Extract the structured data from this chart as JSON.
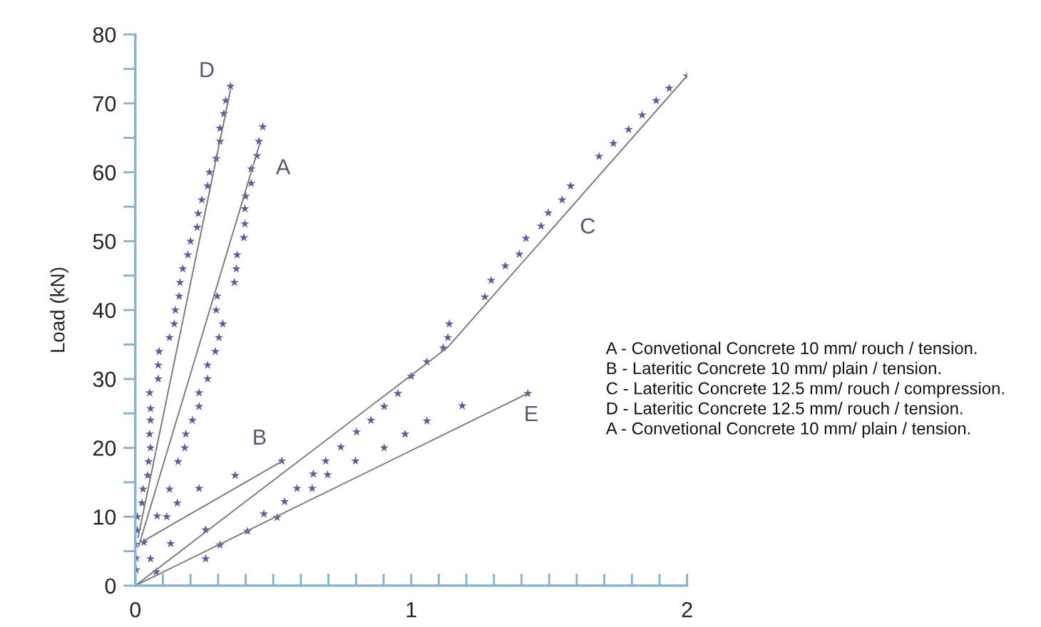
{
  "chart_data": {
    "type": "scatter",
    "ylabel": "Load (kN)",
    "xlim": [
      0,
      2
    ],
    "ylim": [
      0,
      80
    ],
    "xticks": [
      0,
      {
        "value": 0.1,
        "label": null
      },
      {
        "value": 0.2,
        "label": null
      },
      {
        "value": 0.3,
        "label": null
      },
      {
        "value": 0.4,
        "label": null
      },
      {
        "value": 0.5,
        "label": null
      },
      {
        "value": 0.6,
        "label": null
      },
      {
        "value": 0.7,
        "label": null
      },
      {
        "value": 0.8,
        "label": null
      },
      {
        "value": 0.9,
        "label": null
      },
      1,
      {
        "value": 1.1,
        "label": null
      },
      {
        "value": 1.2,
        "label": null
      },
      {
        "value": 1.3,
        "label": null
      },
      {
        "value": 1.4,
        "label": null
      },
      {
        "value": 1.5,
        "label": null
      },
      {
        "value": 1.6,
        "label": null
      },
      {
        "value": 1.7,
        "label": null
      },
      {
        "value": 1.8,
        "label": null
      },
      {
        "value": 1.9,
        "label": null
      },
      2
    ],
    "yticks": [
      0,
      {
        "value": 5,
        "label": null
      },
      10,
      {
        "value": 15,
        "label": null
      },
      20,
      {
        "value": 25,
        "label": null
      },
      30,
      {
        "value": 35,
        "label": null
      },
      40,
      {
        "value": 45,
        "label": null
      },
      50,
      {
        "value": 55,
        "label": null
      },
      60,
      {
        "value": 65,
        "label": null
      },
      70,
      {
        "value": 75,
        "label": null
      },
      80
    ],
    "grid": false,
    "marker": "star",
    "series": [
      {
        "color": "#5a5aa8",
        "x": [
          0.003,
          0.003,
          0.0,
          0.007,
          0.007,
          0.024,
          0.028,
          0.045,
          0.048,
          0.055,
          0.052,
          0.055,
          0.055,
          0.052,
          0.083,
          0.083,
          0.086,
          0.124,
          0.141,
          0.145,
          0.159,
          0.162,
          0.172,
          0.19,
          0.2,
          0.224,
          0.228,
          0.241,
          0.262,
          0.269,
          0.293,
          0.307,
          0.307,
          0.321,
          0.328,
          0.345
        ],
        "values": [
          2.3,
          4,
          6,
          8,
          10,
          12,
          14,
          16,
          18,
          20,
          22,
          24,
          25.7,
          28,
          30,
          32,
          34,
          36,
          38,
          40,
          42,
          44,
          46,
          48,
          50,
          52,
          54,
          56,
          58,
          60,
          62,
          64.5,
          66.4,
          68.5,
          70.4,
          72.5
        ]
      },
      {
        "type": "line",
        "marker": "none",
        "color": "#7a7a7a",
        "x": [
          0.01,
          0.345
        ],
        "values": [
          7,
          72
        ]
      },
      {
        "color": "#5a5aa8",
        "x": [
          0.055,
          0.114,
          0.124,
          0.152,
          0.155,
          0.179,
          0.183,
          0.207,
          0.231,
          0.231,
          0.262,
          0.262,
          0.29,
          0.303,
          0.317,
          0.293,
          0.297,
          0.359,
          0.366,
          0.369,
          0.393,
          0.397,
          0.397,
          0.4,
          0.42,
          0.42,
          0.441,
          0.448,
          0.462
        ],
        "values": [
          3.9,
          10,
          14,
          12,
          18,
          20,
          22,
          24,
          26,
          28,
          30,
          32,
          34,
          36,
          38,
          40,
          42,
          44,
          46,
          48,
          50.5,
          52.5,
          54.7,
          56.5,
          58.4,
          60.5,
          62.4,
          64.5,
          66.6
        ]
      },
      {
        "type": "line",
        "marker": "none",
        "color": "#7a7a7a",
        "x": [
          0.012,
          0.452
        ],
        "values": [
          5.7,
          64.3
        ]
      },
      {
        "color": "#5a5aa8",
        "x": [
          0.031,
          0.079,
          0.231,
          0.362,
          0.531
        ],
        "values": [
          6.3,
          10.1,
          14.1,
          16,
          18.1
        ]
      },
      {
        "type": "line",
        "marker": "none",
        "color": "#7a7a7a",
        "x": [
          0.026,
          0.534
        ],
        "values": [
          6.4,
          18.1
        ]
      },
      {
        "color": "#5a5aa8",
        "x": [
          0.076,
          0.128,
          0.255,
          0.586,
          0.645,
          0.69,
          0.745,
          0.802,
          0.854,
          0.902,
          0.952,
          1.0,
          1.057,
          1.116,
          1.133,
          1.138,
          1.267,
          1.29,
          1.341,
          1.392,
          1.416,
          1.471,
          1.497,
          1.547,
          1.578,
          1.681,
          1.733,
          1.788,
          1.837,
          1.888,
          1.935,
          2.0
        ],
        "values": [
          2,
          6.1,
          8.1,
          14.1,
          16.2,
          18.1,
          20.1,
          22.3,
          24,
          26,
          27.9,
          30.4,
          32.5,
          34.5,
          36,
          38,
          41.9,
          44.3,
          46.4,
          48.1,
          50.4,
          52.2,
          54.1,
          56,
          58,
          62.3,
          64.2,
          66.2,
          68.3,
          70.4,
          72.2,
          74
        ]
      },
      {
        "type": "line",
        "marker": "none",
        "color": "#7a7a7a",
        "x": [
          0,
          1.13,
          2.0
        ],
        "values": [
          0,
          34.5,
          74
        ]
      },
      {
        "color": "#5a5aa8",
        "x": [
          0.255,
          0.307,
          0.407,
          0.466,
          0.514,
          0.541,
          0.641,
          0.697,
          0.798,
          0.902,
          0.978,
          1.057,
          1.185,
          1.423
        ],
        "values": [
          3.9,
          5.9,
          7.9,
          10.4,
          9.9,
          12.2,
          14.1,
          16.1,
          18.1,
          20,
          22,
          23.9,
          26.1,
          27.9
        ]
      },
      {
        "type": "line",
        "marker": "none",
        "color": "#7a7a7a",
        "x": [
          0,
          1.423
        ],
        "values": [
          0,
          27.9
        ]
      }
    ],
    "annotations": [
      {
        "text": "D",
        "x": 0.345,
        "y": 72
      },
      {
        "text": "A",
        "x": 0.452,
        "y": 64.3
      },
      {
        "text": "B",
        "x": 0.534,
        "y": 18.1
      },
      {
        "text": "C",
        "x": 1.547,
        "y": 56
      },
      {
        "text": "E",
        "x": 1.423,
        "y": 27.9
      },
      "A - Convetional Concrete 10 mm/ rouch / tension.",
      "B - Lateritic Concrete 10 mm/ plain / tension.",
      "C - Lateritic Concrete 12.5 mm/ rouch / compression.",
      "D - Lateritic Concrete 12.5 mm/ rouch / tension.",
      "A - Convetional Concrete 10 mm/ plain / tension."
    ]
  }
}
